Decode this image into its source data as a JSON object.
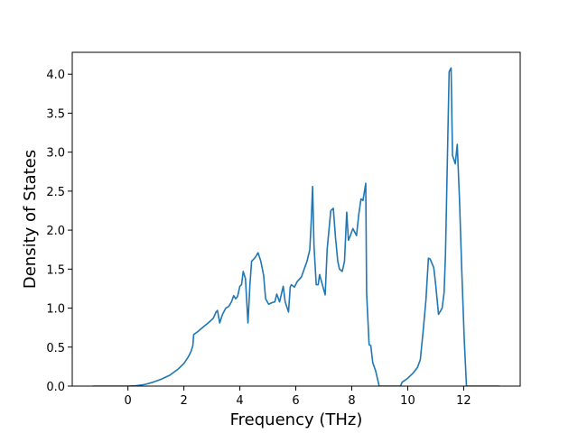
{
  "chart_data": {
    "type": "line",
    "x_label": "Frequency (THz)",
    "y_label": "Density of States",
    "x": [
      -1.26,
      -0.5,
      0,
      0.3,
      0.6,
      0.9,
      1.2,
      1.5,
      1.8,
      2.0,
      2.15,
      2.25,
      2.32,
      2.35,
      2.5,
      2.7,
      2.9,
      3.05,
      3.15,
      3.2,
      3.28,
      3.38,
      3.5,
      3.6,
      3.7,
      3.78,
      3.85,
      3.92,
      4.0,
      4.06,
      4.12,
      4.2,
      4.29,
      4.36,
      4.42,
      4.55,
      4.65,
      4.75,
      4.85,
      4.92,
      5.03,
      5.15,
      5.25,
      5.32,
      5.42,
      5.55,
      5.62,
      5.74,
      5.8,
      5.84,
      5.95,
      6.05,
      6.2,
      6.3,
      6.4,
      6.5,
      6.55,
      6.6,
      6.65,
      6.73,
      6.8,
      6.85,
      6.95,
      7.05,
      7.12,
      7.25,
      7.34,
      7.42,
      7.5,
      7.56,
      7.66,
      7.74,
      7.82,
      7.88,
      7.95,
      8.04,
      8.17,
      8.25,
      8.33,
      8.4,
      8.5,
      8.53,
      8.62,
      8.68,
      8.75,
      8.85,
      8.98,
      9.3,
      9.74,
      9.8,
      10.0,
      10.2,
      10.35,
      10.45,
      10.55,
      10.65,
      10.74,
      10.8,
      10.93,
      11.0,
      11.1,
      11.23,
      11.3,
      11.35,
      11.48,
      11.55,
      11.6,
      11.7,
      11.77,
      11.85,
      11.93,
      12.02,
      12.1,
      12.5,
      13.29
    ],
    "series": [
      {
        "name": "DOS",
        "color": "#1f77b4",
        "values": [
          0,
          0,
          0,
          0.005,
          0.02,
          0.05,
          0.09,
          0.14,
          0.22,
          0.29,
          0.37,
          0.44,
          0.52,
          0.66,
          0.7,
          0.76,
          0.82,
          0.87,
          0.95,
          0.97,
          0.81,
          0.92,
          1.0,
          1.02,
          1.08,
          1.16,
          1.12,
          1.15,
          1.28,
          1.3,
          1.47,
          1.38,
          0.81,
          1.3,
          1.6,
          1.65,
          1.71,
          1.6,
          1.42,
          1.12,
          1.05,
          1.07,
          1.08,
          1.18,
          1.08,
          1.28,
          1.08,
          0.95,
          1.27,
          1.3,
          1.27,
          1.34,
          1.4,
          1.5,
          1.6,
          1.75,
          2.1,
          2.56,
          1.8,
          1.3,
          1.3,
          1.43,
          1.3,
          1.17,
          1.75,
          2.25,
          2.28,
          1.9,
          1.6,
          1.5,
          1.47,
          1.6,
          2.23,
          1.87,
          1.93,
          2.02,
          1.93,
          2.2,
          2.4,
          2.38,
          2.6,
          1.2,
          0.53,
          0.52,
          0.3,
          0.2,
          0,
          0,
          0,
          0.05,
          0.1,
          0.17,
          0.24,
          0.34,
          0.7,
          1.1,
          1.64,
          1.63,
          1.52,
          1.3,
          0.92,
          1.0,
          1.2,
          1.7,
          4.03,
          4.08,
          2.96,
          2.85,
          3.1,
          2.4,
          1.5,
          0.6,
          0,
          0,
          0
        ]
      }
    ],
    "xlim": [
      -1.99,
      14.02
    ],
    "ylim": [
      0,
      4.28
    ],
    "xticks": [
      0,
      2,
      4,
      6,
      8,
      10,
      12
    ],
    "yticks": [
      {
        "value": 0,
        "label": "0.0"
      },
      0.5,
      {
        "value": 1,
        "label": "1.0"
      },
      1.5,
      {
        "value": 2,
        "label": "2.0"
      },
      2.5,
      {
        "value": 3,
        "label": "3.0"
      },
      3.5,
      {
        "value": 4,
        "label": "4.0"
      }
    ],
    "grid": false
  }
}
